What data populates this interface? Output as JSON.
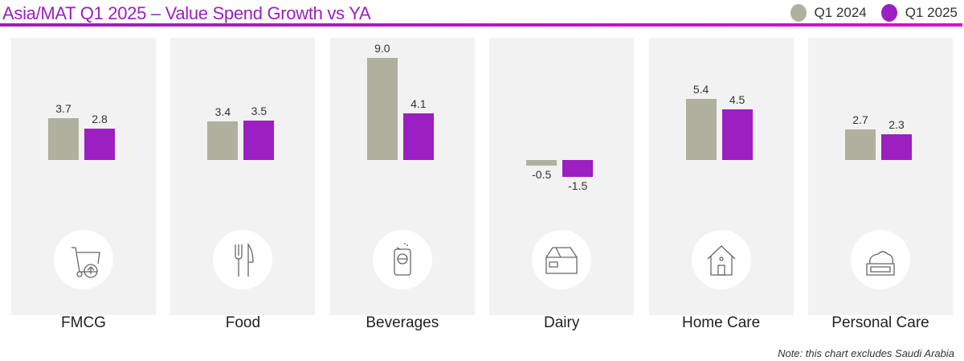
{
  "title": "Asia/MAT Q1 2025 – Value Spend Growth vs YA",
  "note": "Note: this chart excludes Saudi Arabia",
  "chart_data": {
    "type": "bar",
    "title": "Asia/MAT Q1 2025 – Value Spend Growth vs YA",
    "categories": [
      "FMCG",
      "Food",
      "Beverages",
      "Dairy",
      "Home Care",
      "Personal Care"
    ],
    "series": [
      {
        "name": "Q1 2024",
        "color": "#b0b09e",
        "values": [
          3.7,
          3.4,
          9.0,
          -0.5,
          5.4,
          2.7
        ]
      },
      {
        "name": "Q1 2025",
        "color": "#9b1fc1",
        "values": [
          2.8,
          3.5,
          4.1,
          -1.5,
          4.5,
          2.3
        ]
      }
    ],
    "icons": [
      "cart-icon",
      "fork-knife-icon",
      "can-icon",
      "milk-carton-icon",
      "house-icon",
      "cream-jar-icon"
    ],
    "legend": "top-right",
    "grid": false
  }
}
